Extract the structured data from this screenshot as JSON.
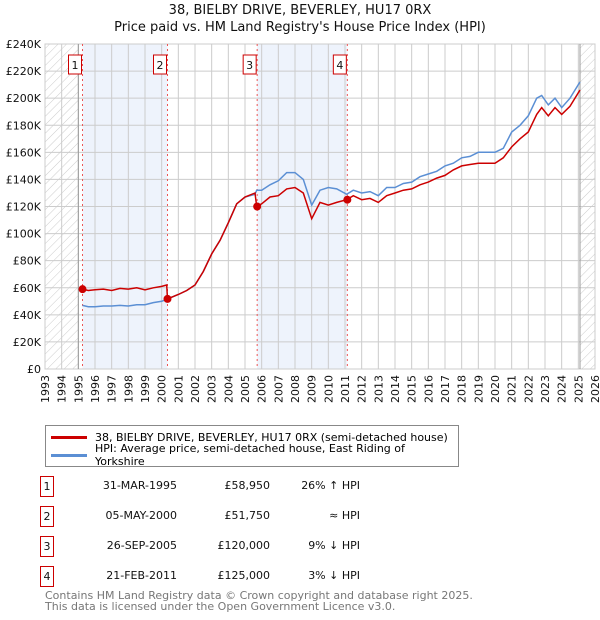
{
  "chart_data": {
    "type": "line",
    "title": "38, BIELBY DRIVE, BEVERLEY, HU17 0RX",
    "subtitle": "Price paid vs. HM Land Registry's House Price Index (HPI)",
    "xlim": [
      1993,
      2026
    ],
    "ylim": [
      0,
      240000
    ],
    "xticks": [
      "1993",
      "1994",
      "1995",
      "1996",
      "1997",
      "1998",
      "1999",
      "2000",
      "2001",
      "2002",
      "2003",
      "2004",
      "2005",
      "2006",
      "2007",
      "2008",
      "2009",
      "2010",
      "2011",
      "2012",
      "2013",
      "2014",
      "2015",
      "2016",
      "2017",
      "2018",
      "2019",
      "2020",
      "2021",
      "2022",
      "2023",
      "2024",
      "2025",
      "2026"
    ],
    "yticks": [
      "£0",
      "£20K",
      "£40K",
      "£60K",
      "£80K",
      "£100K",
      "£120K",
      "£140K",
      "£160K",
      "£180K",
      "£200K",
      "£220K",
      "£240K"
    ],
    "grid": true,
    "series": [
      {
        "name": "38, BIELBY DRIVE, BEVERLEY, HU17 0RX (semi-detached house)",
        "color": "#cc0000",
        "x": [
          1995.25,
          1995.6,
          1996,
          1996.5,
          1997,
          1997.5,
          1998,
          1998.5,
          1999,
          1999.5,
          2000,
          2000.3,
          2000.35,
          2001,
          2001.5,
          2002,
          2002.5,
          2003,
          2003.5,
          2004,
          2004.5,
          2005,
          2005.6,
          2005.7,
          2006,
          2006.5,
          2007,
          2007.5,
          2008,
          2008.5,
          2009,
          2009.5,
          2010,
          2010.5,
          2011.1,
          2011.5,
          2012,
          2012.5,
          2013,
          2013.5,
          2014,
          2014.5,
          2015,
          2015.5,
          2016,
          2016.5,
          2017,
          2017.5,
          2018,
          2018.5,
          2019,
          2019.5,
          2020,
          2020.5,
          2021,
          2021.5,
          2022,
          2022.5,
          2022.8,
          2023.2,
          2023.6,
          2024,
          2024.5,
          2025.1
        ],
        "y": [
          58950,
          58000,
          58500,
          59000,
          58000,
          59500,
          59000,
          60000,
          58500,
          60000,
          61000,
          62000,
          51750,
          55000,
          58000,
          62000,
          72000,
          85000,
          95000,
          108000,
          122000,
          127000,
          130000,
          120000,
          122000,
          127000,
          128000,
          133000,
          134000,
          130000,
          111000,
          123000,
          121000,
          123000,
          125000,
          128000,
          125000,
          126000,
          123000,
          128000,
          130000,
          132000,
          133000,
          136000,
          138000,
          141000,
          143000,
          147000,
          150000,
          151000,
          152000,
          152000,
          152000,
          156000,
          164000,
          170000,
          175000,
          188000,
          193000,
          187000,
          193000,
          188000,
          194000,
          206000
        ]
      },
      {
        "name": "HPI: Average price, semi-detached house, East Riding of Yorkshire",
        "color": "#5b8fd4",
        "x": [
          1995.25,
          1995.6,
          1996,
          1996.5,
          1997,
          1997.5,
          1998,
          1998.5,
          1999,
          1999.5,
          2000,
          2000.35,
          2001,
          2001.5,
          2002,
          2002.5,
          2003,
          2003.5,
          2004,
          2004.5,
          2005,
          2005.6,
          2005.7,
          2006,
          2006.5,
          2007,
          2007.5,
          2008,
          2008.5,
          2009,
          2009.5,
          2010,
          2010.5,
          2011.1,
          2011.5,
          2012,
          2012.5,
          2013,
          2013.5,
          2014,
          2014.5,
          2015,
          2015.5,
          2016,
          2016.5,
          2017,
          2017.5,
          2018,
          2018.5,
          2019,
          2019.5,
          2020,
          2020.5,
          2021,
          2021.5,
          2022,
          2022.5,
          2022.8,
          2023.2,
          2023.6,
          2024,
          2024.5,
          2025.1
        ],
        "y": [
          47000,
          46000,
          46000,
          46500,
          46500,
          47000,
          46500,
          47500,
          47500,
          49000,
          50000,
          51750,
          55000,
          58000,
          62000,
          72000,
          85000,
          95000,
          108000,
          122000,
          127000,
          129000,
          132000,
          132000,
          136000,
          139000,
          145000,
          145000,
          140000,
          121000,
          132000,
          134000,
          133000,
          129000,
          132000,
          130000,
          131000,
          128000,
          134000,
          134000,
          137000,
          138000,
          142000,
          144000,
          146000,
          150000,
          152000,
          156000,
          157000,
          160000,
          160000,
          160000,
          163000,
          175000,
          180000,
          187000,
          200000,
          202000,
          195000,
          200000,
          193000,
          200000,
          212000
        ]
      }
    ],
    "sales": [
      {
        "label": "1",
        "x": 1995.25,
        "y": 58950
      },
      {
        "label": "2",
        "x": 2000.35,
        "y": 51750
      },
      {
        "label": "3",
        "x": 2005.73,
        "y": 120000
      },
      {
        "label": "4",
        "x": 2011.14,
        "y": 125000
      }
    ],
    "shaded_ranges": [
      [
        1995.25,
        2000.35
      ],
      [
        2005.73,
        2011.14
      ]
    ],
    "hatched_ranges": [
      [
        1993,
        1995
      ],
      [
        2025.1,
        2026
      ]
    ],
    "legend_placement": "below"
  },
  "legend": {
    "red": "38, BIELBY DRIVE, BEVERLEY, HU17 0RX (semi-detached house)",
    "blue": "HPI: Average price, semi-detached house, East Riding of Yorkshire"
  },
  "table": [
    {
      "n": "1",
      "date": "31-MAR-1995",
      "price": "£58,950",
      "rel": "26% ↑ HPI"
    },
    {
      "n": "2",
      "date": "05-MAY-2000",
      "price": "£51,750",
      "rel": "≈ HPI"
    },
    {
      "n": "3",
      "date": "26-SEP-2005",
      "price": "£120,000",
      "rel": "9% ↓ HPI"
    },
    {
      "n": "4",
      "date": "21-FEB-2011",
      "price": "£125,000",
      "rel": "3% ↓ HPI"
    }
  ],
  "footer": {
    "line1": "Contains HM Land Registry data © Crown copyright and database right 2025.",
    "line2": "This data is licensed under the Open Government Licence v3.0."
  }
}
